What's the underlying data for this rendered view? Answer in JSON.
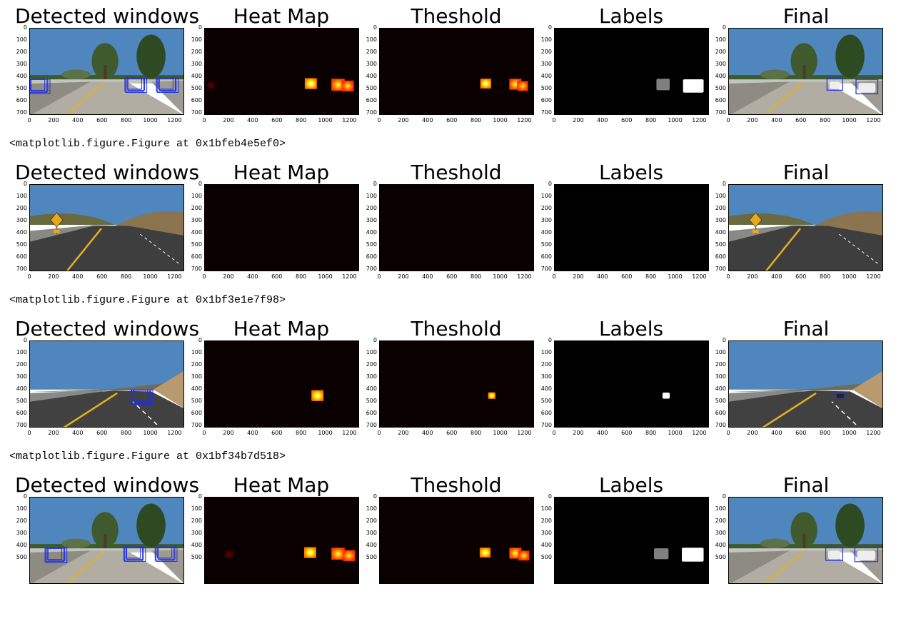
{
  "panel_titles": [
    "Detected windows",
    "Heat Map",
    "Theshold",
    "Labels",
    "Final"
  ],
  "y_ticks": [
    "0",
    "100",
    "200",
    "300",
    "400",
    "500",
    "600",
    "700"
  ],
  "x_ticks": [
    "0",
    "200",
    "400",
    "600",
    "800",
    "1000",
    "1200"
  ],
  "figure_reprs": [
    "<matplotlib.figure.Figure at 0x1bfeb4e5ef0>",
    "<matplotlib.figure.Figure at 0x1bf3e1e7f98>",
    "<matplotlib.figure.Figure at 0x1bf34b7d518>"
  ],
  "colors": {
    "sky": "#4f86bd",
    "road": "#9a9a96",
    "box": "#1f2fe6",
    "heat_bg": "#0b0000",
    "label_bg": "#000000"
  },
  "rows": [
    {
      "scene": "trees",
      "windows": [
        [
          70,
          470
        ],
        [
          870,
          460
        ],
        [
          1130,
          460
        ]
      ],
      "heat": [
        {
          "x": 50,
          "y": 470,
          "r": 30,
          "level": 0.15
        },
        {
          "x": 875,
          "y": 455,
          "r": 50,
          "level": 1.0
        },
        {
          "x": 1100,
          "y": 465,
          "r": 55,
          "level": 0.85
        },
        {
          "x": 1180,
          "y": 475,
          "r": 50,
          "level": 0.8
        }
      ],
      "thresh": [
        {
          "x": 875,
          "y": 455,
          "r": 45,
          "level": 1.0
        },
        {
          "x": 1120,
          "y": 460,
          "r": 50,
          "level": 0.85
        },
        {
          "x": 1180,
          "y": 475,
          "r": 45,
          "level": 0.8
        }
      ],
      "labels": [
        {
          "x": 840,
          "y": 415,
          "w": 110,
          "h": 95,
          "level": 0.5
        },
        {
          "x": 1060,
          "y": 420,
          "w": 170,
          "h": 110,
          "level": 1.0
        }
      ],
      "final": [
        {
          "x": 810,
          "y": 410,
          "w": 130,
          "h": 100
        },
        {
          "x": 1050,
          "y": 420,
          "w": 180,
          "h": 120
        }
      ]
    },
    {
      "scene": "curve",
      "windows": [],
      "heat": [],
      "thresh": [],
      "labels": [],
      "final": []
    },
    {
      "scene": "hill",
      "windows": [
        [
          920,
          455
        ]
      ],
      "heat": [
        {
          "x": 930,
          "y": 450,
          "r": 50,
          "level": 1.0
        }
      ],
      "thresh": [
        {
          "x": 925,
          "y": 450,
          "r": 30,
          "level": 1.0
        }
      ],
      "labels": [
        {
          "x": 890,
          "y": 425,
          "w": 60,
          "h": 50,
          "level": 1.0
        }
      ],
      "final": [
        {
          "x": 880,
          "y": 420,
          "w": 80,
          "h": 60
        }
      ]
    },
    {
      "scene": "trees",
      "windows": [
        [
          210,
          470
        ],
        [
          860,
          460
        ],
        [
          1120,
          460
        ]
      ],
      "heat": [
        {
          "x": 200,
          "y": 470,
          "r": 35,
          "level": 0.15
        },
        {
          "x": 870,
          "y": 455,
          "r": 50,
          "level": 1.0
        },
        {
          "x": 1100,
          "y": 465,
          "r": 55,
          "level": 0.85
        },
        {
          "x": 1190,
          "y": 480,
          "r": 50,
          "level": 0.8
        }
      ],
      "thresh": [
        {
          "x": 870,
          "y": 455,
          "r": 45,
          "level": 1.0
        },
        {
          "x": 1120,
          "y": 460,
          "r": 50,
          "level": 0.85
        },
        {
          "x": 1190,
          "y": 480,
          "r": 45,
          "level": 0.8
        }
      ],
      "labels": [
        {
          "x": 820,
          "y": 420,
          "w": 120,
          "h": 90,
          "level": 0.5
        },
        {
          "x": 1050,
          "y": 415,
          "w": 180,
          "h": 115,
          "level": 1.0
        }
      ],
      "final": [
        {
          "x": 800,
          "y": 410,
          "w": 140,
          "h": 110
        },
        {
          "x": 1040,
          "y": 410,
          "w": 190,
          "h": 120
        }
      ]
    }
  ]
}
